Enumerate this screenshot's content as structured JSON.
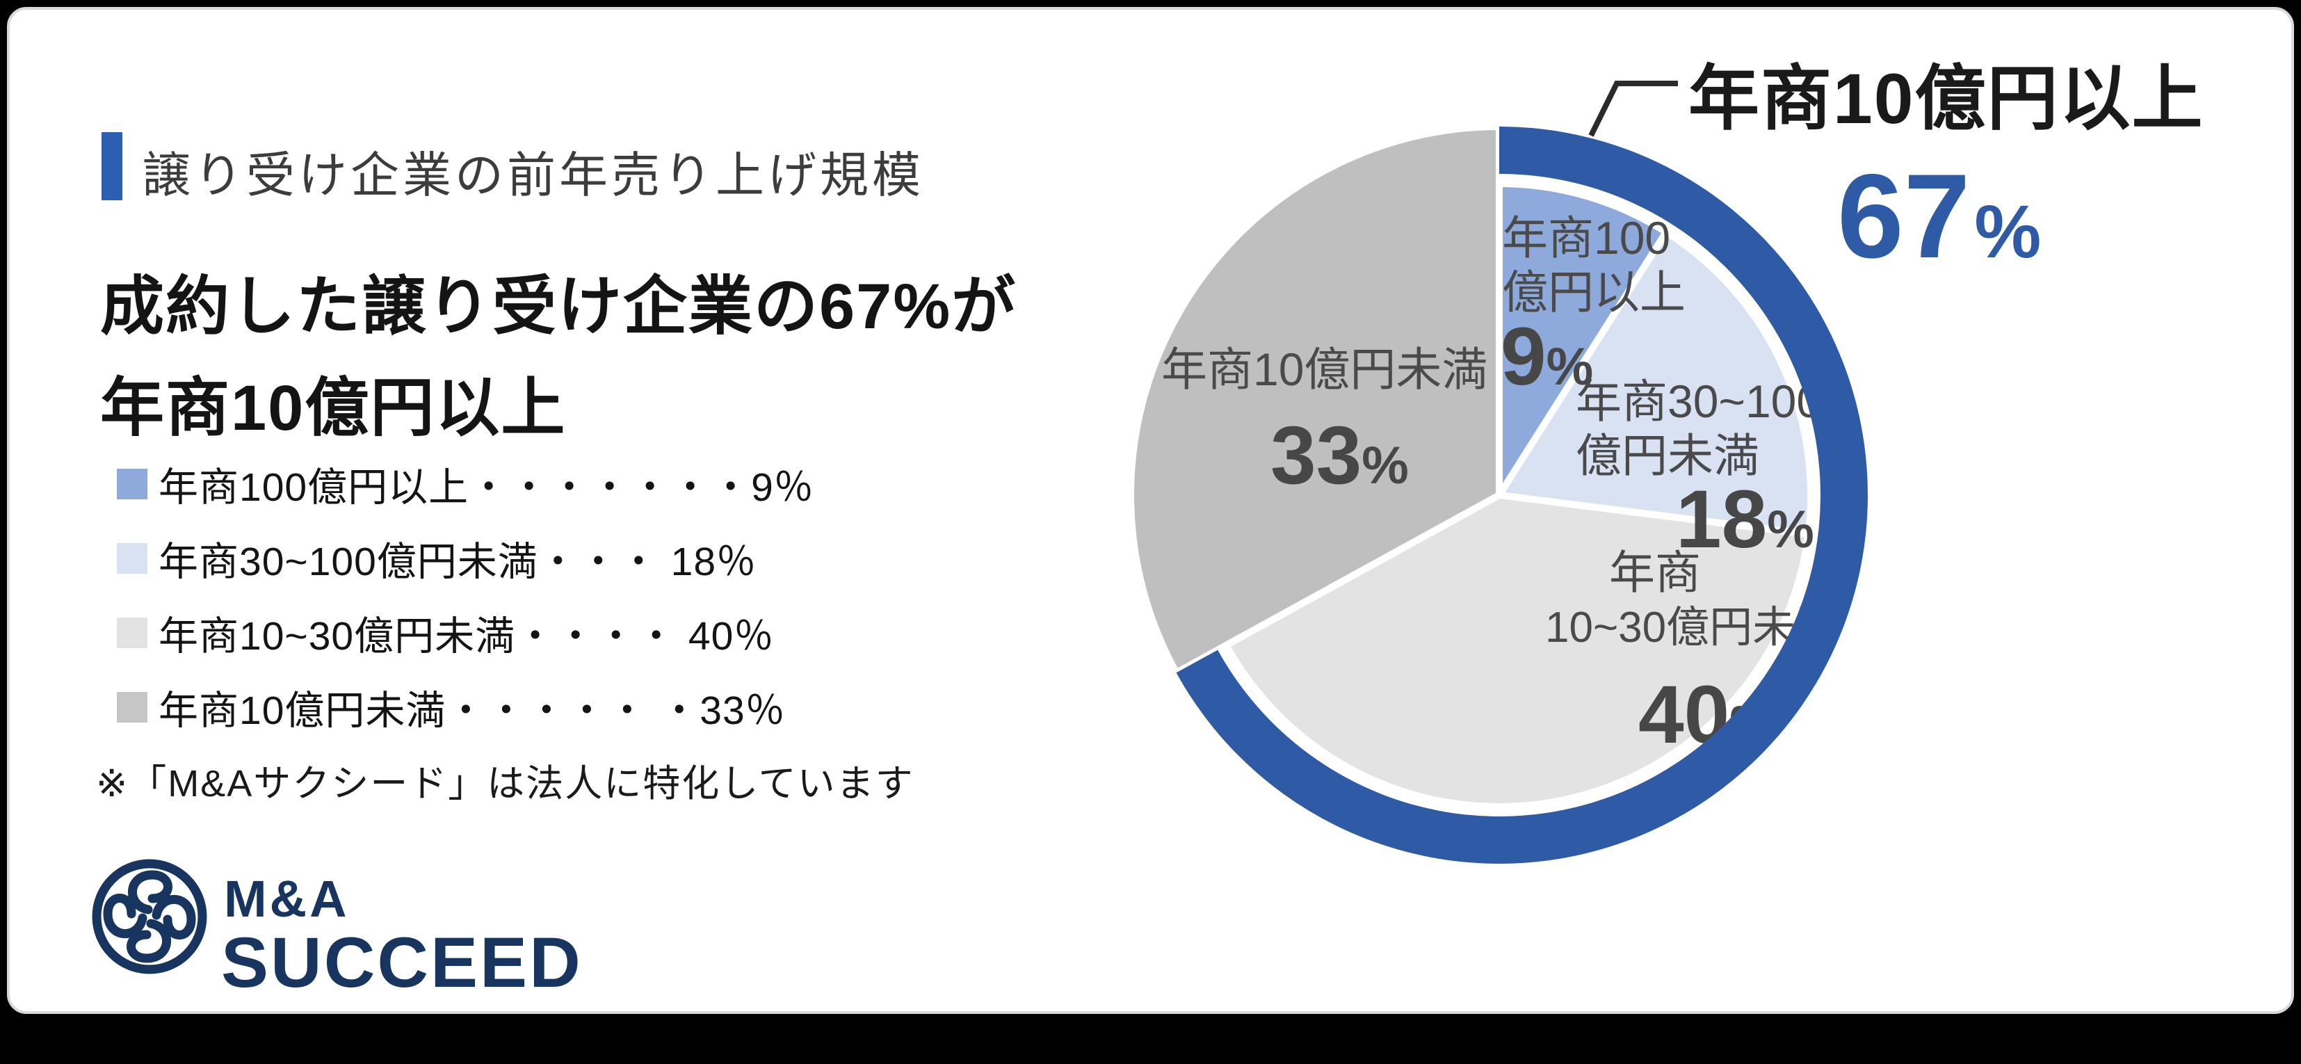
{
  "theme": {
    "accent_blue": "#2E5AA6",
    "bar_blue": "#2B5FB2",
    "navy": "#17355E",
    "card_background": "#FFFFFF",
    "card_border": "#D9D9D9",
    "page_background": "#000000",
    "pie_label_gray": "#4A4A4A"
  },
  "header": {
    "section_title": "譲り受け企業の前年売り上げ規模"
  },
  "headline": {
    "line1": "成約した譲り受け企業の67%が",
    "line2": "年商10億円以上"
  },
  "legend": {
    "items": [
      {
        "text": "年商100億円以上・・・・・・・9％",
        "color": "#8EA9DB"
      },
      {
        "text": "年商30~100億円未満・・・ 18％",
        "color": "#D8E2F3"
      },
      {
        "text": "年商10~30億円未満・・・・ 40％",
        "color": "#E3E3E3"
      },
      {
        "text": "年商10億円未満・・・・・ ・33％",
        "color": "#C6C6C6"
      }
    ]
  },
  "note": {
    "text": "※「M&Aサクシード」は法人に特化しています"
  },
  "logo": {
    "line1": "M&A",
    "line2": "SUCCEED"
  },
  "chart_data": {
    "type": "pie",
    "title": "譲り受け企業の前年売り上げ規模",
    "unit": "%",
    "percent_sign": "%",
    "start_angle_deg": 0,
    "direction": "clockwise",
    "legend_position": "left",
    "slices": [
      {
        "label": "年商100億円以上",
        "label_lines": [
          "年商100",
          "億円以上"
        ],
        "value": 9,
        "color": "#8EA9DB"
      },
      {
        "label": "年商30~100億円未満",
        "label_lines": [
          "年商30~100",
          "億円未満"
        ],
        "value": 18,
        "color": "#D8E2F3"
      },
      {
        "label": "年商10~30億円未満",
        "label_lines": [
          "年商",
          "10~30億円未満"
        ],
        "value": 40,
        "color": "#E3E3E3"
      },
      {
        "label": "年商10億円未満",
        "label_lines": [
          "年商10億円未満"
        ],
        "value": 33,
        "color": "#BFBFBF",
        "full_radius": true
      }
    ],
    "callout": {
      "label": "年商10億円以上",
      "value": 67,
      "color": "#2E5AA6",
      "covers_slices": [
        "年商100億円以上",
        "年商30~100億円未満",
        "年商10~30億円未満"
      ]
    }
  }
}
